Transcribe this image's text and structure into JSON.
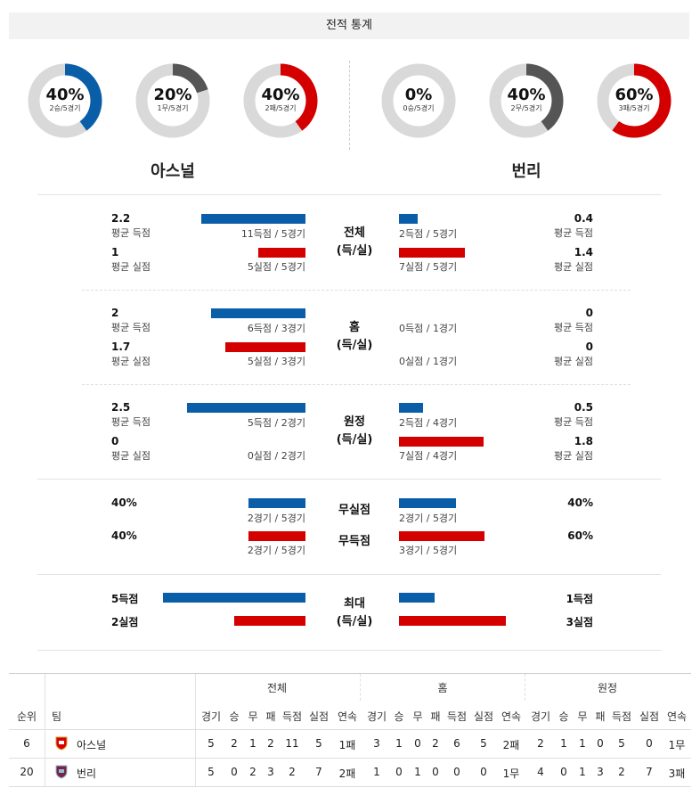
{
  "header": {
    "title": "전적 통계"
  },
  "colors": {
    "blue": "#0a5ea8",
    "red": "#d40000",
    "gray": "#555555",
    "track": "#d9d9d9"
  },
  "donuts": {
    "home": [
      {
        "pct": "40%",
        "sub": "2승/5경기",
        "fraction": 0.4,
        "color": "#0a5ea8"
      },
      {
        "pct": "20%",
        "sub": "1무/5경기",
        "fraction": 0.2,
        "color": "#555555"
      },
      {
        "pct": "40%",
        "sub": "2패/5경기",
        "fraction": 0.4,
        "color": "#d40000"
      }
    ],
    "away": [
      {
        "pct": "0%",
        "sub": "0승/5경기",
        "fraction": 0.0,
        "color": "#0a5ea8"
      },
      {
        "pct": "40%",
        "sub": "2무/5경기",
        "fraction": 0.4,
        "color": "#555555"
      },
      {
        "pct": "60%",
        "sub": "3패/5경기",
        "fraction": 0.6,
        "color": "#d40000"
      }
    ]
  },
  "teams": {
    "home": "아스널",
    "away": "번리"
  },
  "sections": [
    {
      "title1": "전체",
      "title2": "(득/실)",
      "home": {
        "scored_val": "2.2",
        "scored_lbl": "평균 득점",
        "scored_cnt": "11득점 / 5경기",
        "scored_frac": 0.44,
        "conceded_val": "1",
        "conceded_lbl": "평균 실점",
        "conceded_cnt": "5실점 / 5경기",
        "conceded_frac": 0.2
      },
      "away": {
        "scored_val": "0.4",
        "scored_lbl": "평균 득점",
        "scored_cnt": "2득점 / 5경기",
        "scored_frac": 0.08,
        "conceded_val": "1.4",
        "conceded_lbl": "평균 실점",
        "conceded_cnt": "7실점 / 5경기",
        "conceded_frac": 0.28
      }
    },
    {
      "title1": "홈",
      "title2": "(득/실)",
      "home": {
        "scored_val": "2",
        "scored_lbl": "평균 득점",
        "scored_cnt": "6득점 / 3경기",
        "scored_frac": 0.4,
        "conceded_val": "1.7",
        "conceded_lbl": "평균 실점",
        "conceded_cnt": "5실점 / 3경기",
        "conceded_frac": 0.34
      },
      "away": {
        "scored_val": "0",
        "scored_lbl": "평균 득점",
        "scored_cnt": "0득점 / 1경기",
        "scored_frac": 0.0,
        "conceded_val": "0",
        "conceded_lbl": "평균 실점",
        "conceded_cnt": "0실점 / 1경기",
        "conceded_frac": 0.0
      }
    },
    {
      "title1": "원정",
      "title2": "(득/실)",
      "home": {
        "scored_val": "2.5",
        "scored_lbl": "평균 득점",
        "scored_cnt": "5득점 / 2경기",
        "scored_frac": 0.5,
        "conceded_val": "0",
        "conceded_lbl": "평균 실점",
        "conceded_cnt": "0실점 / 2경기",
        "conceded_frac": 0.0
      },
      "away": {
        "scored_val": "0.5",
        "scored_lbl": "평균 득점",
        "scored_cnt": "2득점 / 4경기",
        "scored_frac": 0.1,
        "conceded_val": "1.8",
        "conceded_lbl": "평균 실점",
        "conceded_cnt": "7실점 / 4경기",
        "conceded_frac": 0.36
      }
    }
  ],
  "clean": {
    "label_clean": "무실점",
    "label_noscore": "무득점",
    "home": {
      "clean_val": "40%",
      "clean_cnt": "2경기 / 5경기",
      "clean_frac": 0.4,
      "noscore_val": "40%",
      "noscore_cnt": "2경기 / 5경기",
      "noscore_frac": 0.4
    },
    "away": {
      "clean_val": "40%",
      "clean_cnt": "2경기 / 5경기",
      "clean_frac": 0.4,
      "noscore_val": "60%",
      "noscore_cnt": "3경기 / 5경기",
      "noscore_frac": 0.6
    }
  },
  "max": {
    "title1": "최대",
    "title2": "(득/실)",
    "home": {
      "scored": "5득점",
      "scored_frac": 1.0,
      "conceded": "2실점",
      "conceded_frac": 0.4
    },
    "away": {
      "scored": "1득점",
      "scored_frac": 0.2,
      "conceded": "3실점",
      "conceded_frac": 0.6
    }
  },
  "table": {
    "group_headers": [
      "전체",
      "홈",
      "원정"
    ],
    "headers": {
      "rank": "순위",
      "team": "팀",
      "cols": [
        "경기",
        "승",
        "무",
        "패",
        "득점",
        "실점",
        "연속"
      ]
    },
    "rows": [
      {
        "rank": "6",
        "team": "아스널",
        "crest": "arsenal-crest",
        "all": [
          "5",
          "2",
          "1",
          "2",
          "11",
          "5",
          "1패"
        ],
        "home": [
          "3",
          "1",
          "0",
          "2",
          "6",
          "5",
          "2패"
        ],
        "away": [
          "2",
          "1",
          "1",
          "0",
          "5",
          "0",
          "1무"
        ]
      },
      {
        "rank": "20",
        "team": "번리",
        "crest": "burnley-crest",
        "all": [
          "5",
          "0",
          "2",
          "3",
          "2",
          "7",
          "2패"
        ],
        "home": [
          "1",
          "0",
          "1",
          "0",
          "0",
          "0",
          "1무"
        ],
        "away": [
          "4",
          "0",
          "1",
          "3",
          "2",
          "7",
          "3패"
        ]
      }
    ]
  }
}
